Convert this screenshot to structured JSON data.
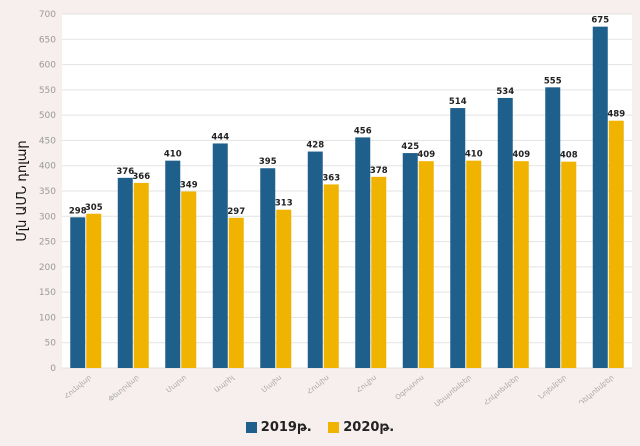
{
  "chart_data": {
    "type": "bar",
    "ylabel": "Մլն ԱՄՆ դոլար",
    "ylim": [
      0,
      700
    ],
    "yticks": [
      0,
      50,
      100,
      150,
      200,
      250,
      300,
      350,
      400,
      450,
      500,
      550,
      600,
      650,
      700
    ],
    "grid": true,
    "legend_position": "bottom",
    "categories": [
      "Հունվար",
      "Փետրվար",
      "Մարտ",
      "Ապրիլ",
      "Մայիս",
      "Հունիս",
      "Հուլիս",
      "Օգոստոս",
      "Սեպտեմբեր",
      "Հոկտեմբեր",
      "Նոյեմբեր",
      "Դեկտեմբեր"
    ],
    "series": [
      {
        "name": "2019թ.",
        "color": "#1f5f8b",
        "values": [
          298,
          376,
          410,
          444,
          395,
          428,
          456,
          425,
          514,
          534,
          555,
          675
        ]
      },
      {
        "name": "2020թ.",
        "color": "#f0b400",
        "values": [
          305,
          366,
          349,
          297,
          313,
          363,
          378,
          409,
          410,
          409,
          408,
          489
        ]
      }
    ]
  }
}
